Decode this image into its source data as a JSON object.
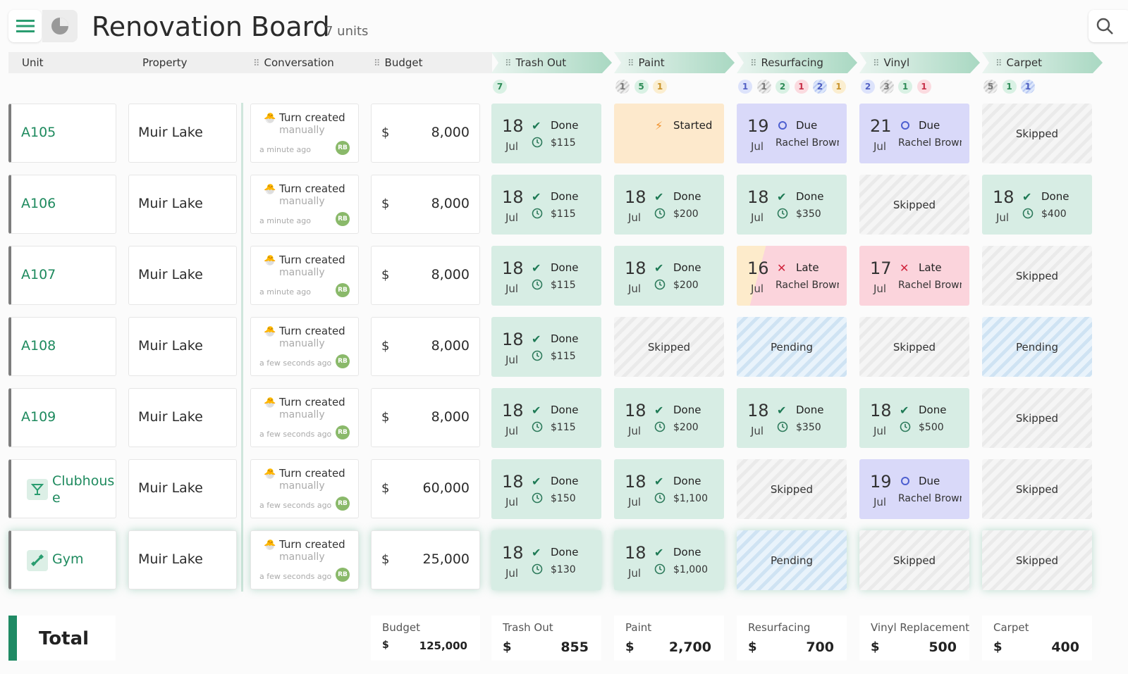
{
  "header": {
    "title": "Renovation Board",
    "subtitle": "7 units"
  },
  "columns": {
    "unit": "Unit",
    "property": "Property",
    "conversation": "Conversation",
    "budget": "Budget"
  },
  "stages": [
    {
      "label": "Trash Out",
      "badges": [
        {
          "text": "7",
          "kind": "green"
        }
      ]
    },
    {
      "label": "Paint",
      "badges": [
        {
          "text": "1",
          "kind": "graystripe"
        },
        {
          "text": "5",
          "kind": "green"
        },
        {
          "text": "1",
          "kind": "yellow"
        }
      ]
    },
    {
      "label": "Resurfacing",
      "badges": [
        {
          "text": "1",
          "kind": "blue"
        },
        {
          "text": "1",
          "kind": "graystripe"
        },
        {
          "text": "2",
          "kind": "green"
        },
        {
          "text": "1",
          "kind": "red"
        },
        {
          "text": "2",
          "kind": "bluestripe"
        },
        {
          "text": "1",
          "kind": "yellow"
        }
      ]
    },
    {
      "label": "Vinyl",
      "badges": [
        {
          "text": "2",
          "kind": "blue"
        },
        {
          "text": "3",
          "kind": "graystripe"
        },
        {
          "text": "1",
          "kind": "green"
        },
        {
          "text": "1",
          "kind": "red"
        }
      ]
    },
    {
      "label": "Carpet",
      "badges": [
        {
          "text": "5",
          "kind": "graystripe"
        },
        {
          "text": "1",
          "kind": "green"
        },
        {
          "text": "1",
          "kind": "bluestripe"
        }
      ]
    }
  ],
  "rows": [
    {
      "unit": "A105",
      "property": "Muir Lake",
      "conv_title": "Turn created",
      "conv_sub": "manually",
      "conv_time": "a minute ago",
      "avatar": "RB",
      "currency": "$",
      "budget": "8,000",
      "stages": [
        {
          "kind": "done",
          "day": "18",
          "mon": "Jul",
          "status": "Done",
          "cost": "$115"
        },
        {
          "kind": "started",
          "status": "Started"
        },
        {
          "kind": "due",
          "day": "19",
          "mon": "Jul",
          "status": "Due",
          "who": "Rachel Brown"
        },
        {
          "kind": "due",
          "day": "21",
          "mon": "Jul",
          "status": "Due",
          "who": "Rachel Brown"
        },
        {
          "kind": "skipped",
          "text": "Skipped"
        }
      ]
    },
    {
      "unit": "A106",
      "property": "Muir Lake",
      "conv_title": "Turn created",
      "conv_sub": "manually",
      "conv_time": "a minute ago",
      "avatar": "RB",
      "currency": "$",
      "budget": "8,000",
      "stages": [
        {
          "kind": "done",
          "day": "18",
          "mon": "Jul",
          "status": "Done",
          "cost": "$115"
        },
        {
          "kind": "done",
          "day": "18",
          "mon": "Jul",
          "status": "Done",
          "cost": "$200"
        },
        {
          "kind": "done",
          "day": "18",
          "mon": "Jul",
          "status": "Done",
          "cost": "$350"
        },
        {
          "kind": "skipped",
          "text": "Skipped"
        },
        {
          "kind": "done",
          "day": "18",
          "mon": "Jul",
          "status": "Done",
          "cost": "$400"
        }
      ]
    },
    {
      "unit": "A107",
      "property": "Muir Lake",
      "conv_title": "Turn created",
      "conv_sub": "manually",
      "conv_time": "a minute ago",
      "avatar": "RB",
      "currency": "$",
      "budget": "8,000",
      "stages": [
        {
          "kind": "done",
          "day": "18",
          "mon": "Jul",
          "status": "Done",
          "cost": "$115"
        },
        {
          "kind": "done",
          "day": "18",
          "mon": "Jul",
          "status": "Done",
          "cost": "$200"
        },
        {
          "kind": "late-split",
          "day": "16",
          "mon": "Jul",
          "status": "Late",
          "who": "Rachel Brown"
        },
        {
          "kind": "late",
          "day": "17",
          "mon": "Jul",
          "status": "Late",
          "who": "Rachel Brown"
        },
        {
          "kind": "skipped",
          "text": "Skipped"
        }
      ]
    },
    {
      "unit": "A108",
      "property": "Muir Lake",
      "conv_title": "Turn created",
      "conv_sub": "manually",
      "conv_time": "a few seconds ago",
      "avatar": "RB",
      "currency": "$",
      "budget": "8,000",
      "stages": [
        {
          "kind": "done",
          "day": "18",
          "mon": "Jul",
          "status": "Done",
          "cost": "$115"
        },
        {
          "kind": "skipped",
          "text": "Skipped"
        },
        {
          "kind": "pending",
          "text": "Pending"
        },
        {
          "kind": "skipped",
          "text": "Skipped"
        },
        {
          "kind": "pending",
          "text": "Pending"
        }
      ]
    },
    {
      "unit": "A109",
      "property": "Muir Lake",
      "conv_title": "Turn created",
      "conv_sub": "manually",
      "conv_time": "a few seconds ago",
      "avatar": "RB",
      "currency": "$",
      "budget": "8,000",
      "stages": [
        {
          "kind": "done",
          "day": "18",
          "mon": "Jul",
          "status": "Done",
          "cost": "$115"
        },
        {
          "kind": "done",
          "day": "18",
          "mon": "Jul",
          "status": "Done",
          "cost": "$200"
        },
        {
          "kind": "done",
          "day": "18",
          "mon": "Jul",
          "status": "Done",
          "cost": "$350"
        },
        {
          "kind": "done",
          "day": "18",
          "mon": "Jul",
          "status": "Done",
          "cost": "$500"
        },
        {
          "kind": "skipped",
          "text": "Skipped"
        }
      ]
    },
    {
      "unit": "Clubhous\ne",
      "unit_icon": "cocktail-icon",
      "property": "Muir Lake",
      "conv_title": "Turn created",
      "conv_sub": "manually",
      "conv_time": "a few seconds ago",
      "avatar": "RB",
      "currency": "$",
      "budget": "60,000",
      "stages": [
        {
          "kind": "done",
          "day": "18",
          "mon": "Jul",
          "status": "Done",
          "cost": "$150"
        },
        {
          "kind": "done",
          "day": "18",
          "mon": "Jul",
          "status": "Done",
          "cost": "$1,100"
        },
        {
          "kind": "skipped",
          "text": "Skipped"
        },
        {
          "kind": "due",
          "day": "19",
          "mon": "Jul",
          "status": "Due",
          "who": "Rachel Brown"
        },
        {
          "kind": "skipped",
          "text": "Skipped"
        }
      ]
    },
    {
      "unit": "Gym",
      "unit_icon": "dumbbell-icon",
      "property": "Muir Lake",
      "conv_title": "Turn created",
      "conv_sub": "manually",
      "conv_time": "a few seconds ago",
      "avatar": "RB",
      "currency": "$",
      "budget": "25,000",
      "stages": [
        {
          "kind": "done",
          "day": "18",
          "mon": "Jul",
          "status": "Done",
          "cost": "$130"
        },
        {
          "kind": "done",
          "day": "18",
          "mon": "Jul",
          "status": "Done",
          "cost": "$1,000"
        },
        {
          "kind": "pending",
          "text": "Pending"
        },
        {
          "kind": "skipped",
          "text": "Skipped"
        },
        {
          "kind": "skipped",
          "text": "Skipped"
        }
      ]
    }
  ],
  "totals": {
    "label": "Total",
    "items": [
      {
        "label": "Budget",
        "currency": "$",
        "value": "125,000"
      },
      {
        "label": "Trash Out",
        "currency": "$",
        "value": "855"
      },
      {
        "label": "Paint",
        "currency": "$",
        "value": "2,700"
      },
      {
        "label": "Resurfacing",
        "currency": "$",
        "value": "700"
      },
      {
        "label": "Vinyl Replacement",
        "currency": "$",
        "value": "500"
      },
      {
        "label": "Carpet",
        "currency": "$",
        "value": "400"
      }
    ]
  },
  "colors": {
    "accent": "#1f8a64",
    "done": "#d7ede4",
    "due": "#d9d9f9",
    "late": "#fbd4dc",
    "started": "#fde9cc"
  }
}
